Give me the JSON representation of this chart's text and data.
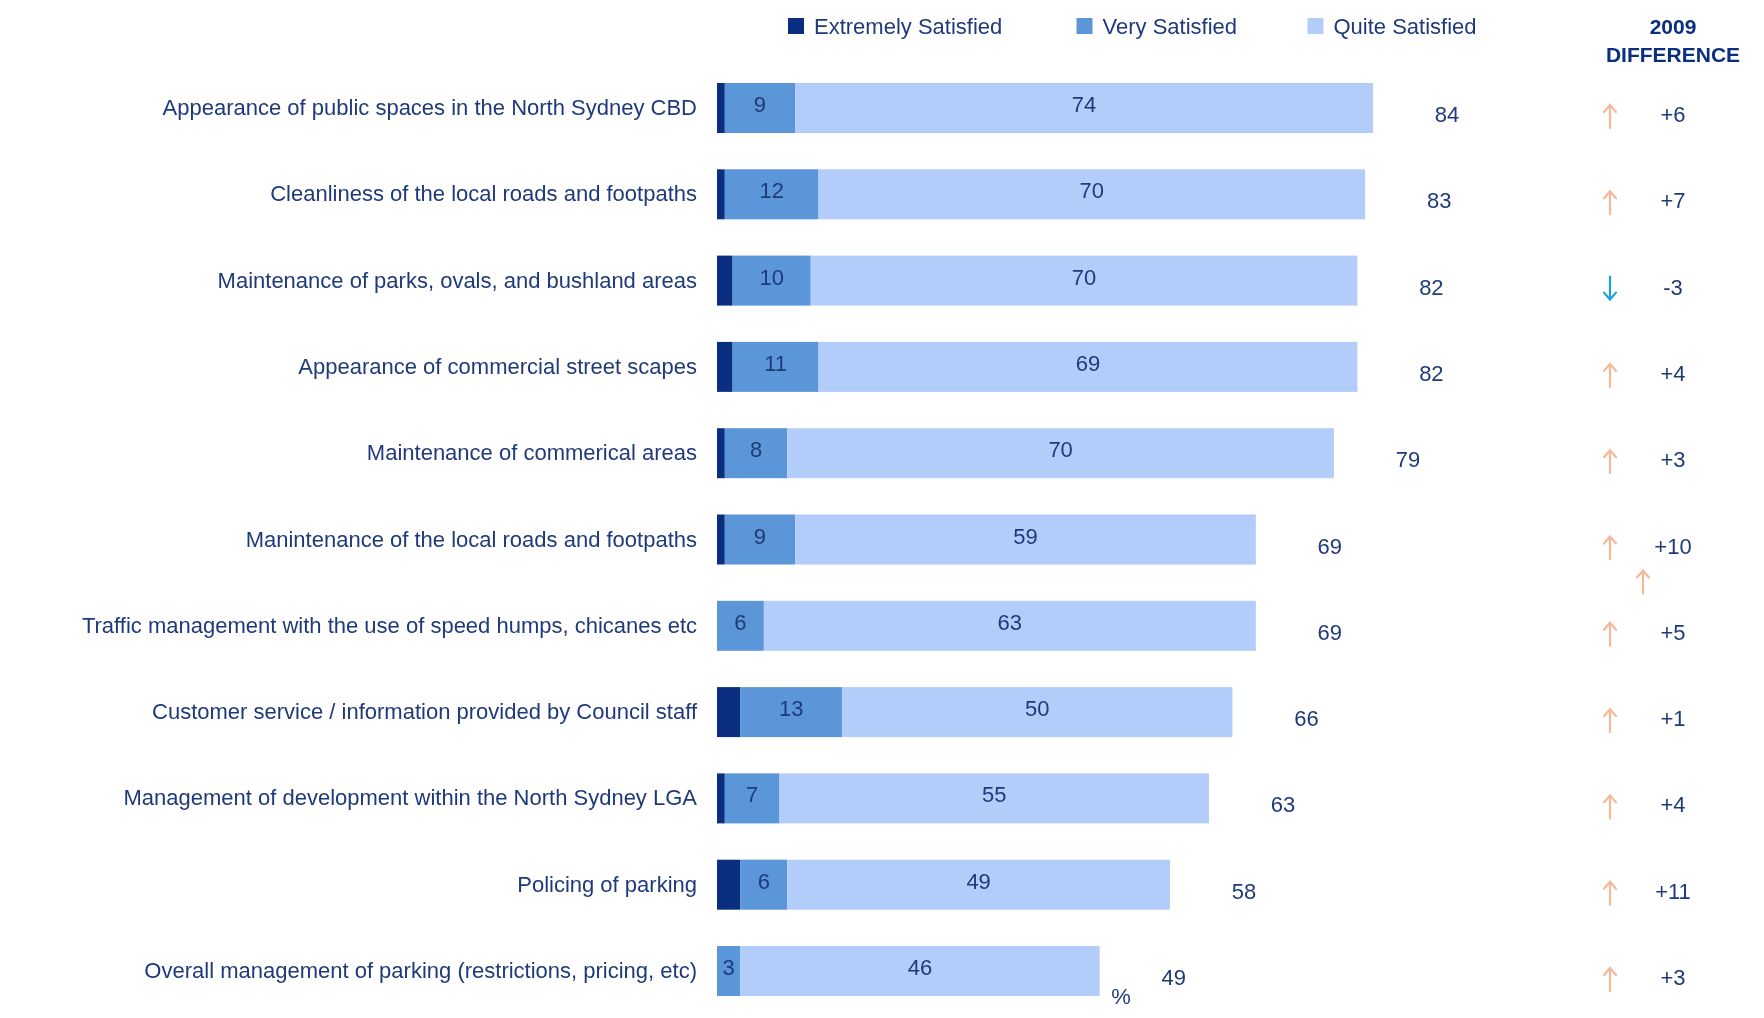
{
  "chart_data": {
    "type": "bar",
    "orientation": "horizontal",
    "stacked": true,
    "legend": "top",
    "categories": [
      "Appearance of public spaces in the North Sydney CBD",
      "Cleanliness of the local roads and footpaths",
      "Maintenance of parks, ovals, and bushland areas",
      "Appearance of commercial street scapes",
      "Maintenance of commerical areas",
      "Manintenance of the local roads and footpaths",
      "Traffic management with the use of speed humps, chicanes etc",
      "Customer service / information provided by Council staff",
      "Management of development within the North Sydney LGA",
      "Policing of parking",
      "Overall management of parking (restrictions, pricing, etc)"
    ],
    "series": [
      {
        "name": "Extremely Satisfied",
        "color": "#0b2f80",
        "values": [
          1,
          1,
          2,
          2,
          1,
          1,
          0,
          3,
          1,
          3,
          0
        ]
      },
      {
        "name": "Very Satisfied",
        "color": "#5b96d8",
        "values": [
          9,
          12,
          10,
          11,
          8,
          9,
          6,
          13,
          7,
          6,
          3
        ],
        "value_labels": [
          "9",
          "12",
          "10",
          "11",
          "8",
          "9",
          "6",
          "13",
          "7",
          "6",
          "3"
        ]
      },
      {
        "name": "Quite Satisfied",
        "color": "#b3cdfb",
        "values": [
          74,
          70,
          70,
          69,
          70,
          59,
          63,
          50,
          55,
          49,
          46
        ],
        "value_labels": [
          "74",
          "70",
          "70",
          "69",
          "70",
          "59",
          "63",
          "50",
          "55",
          "49",
          "46"
        ]
      }
    ],
    "totals": [
      "84",
      "83",
      "82",
      "82",
      "79",
      "69",
      "69",
      "66",
      "63",
      "58",
      "49"
    ],
    "annotations": [
      "2009 DIFFERENCE",
      "+6",
      "+7",
      "-3",
      "+4",
      "+3",
      "+10",
      "+5",
      "+1",
      "+4",
      "+11",
      "+3",
      "%"
    ]
  }
}
